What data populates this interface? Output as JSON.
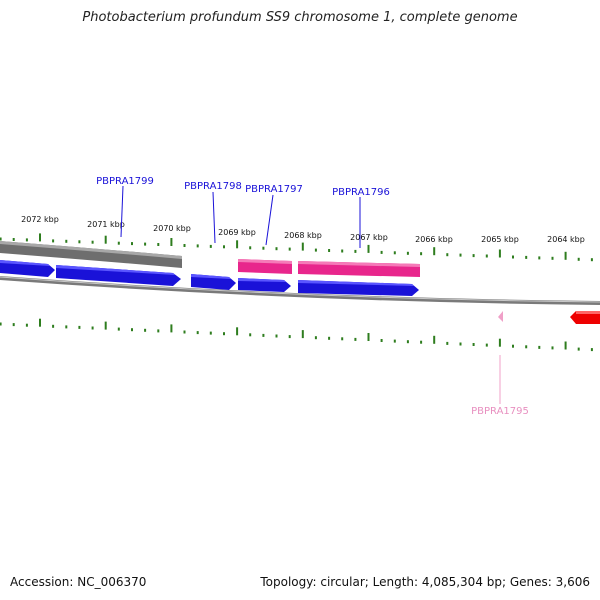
{
  "title": "Photobacterium profundum SS9 chromosome 1, complete genome",
  "footer": {
    "accession": "Accession: NC_006370",
    "summary": "Topology: circular; Length: 4,085,304 bp; Genes: 3,606"
  },
  "colors": {
    "blue_cds": "#1a12d8",
    "pink_cds": "#e8268c",
    "red_cds": "#ee0000",
    "light_pink": "#f0a0c8",
    "gray_feature": "#707070",
    "tick": "#2e7d1e",
    "backbone": "#808080",
    "label_blue": "#1a12d8",
    "label_pink": "#e890c0"
  },
  "kbp_ticks": [
    "2072 kbp",
    "2071 kbp",
    "2070 kbp",
    "2069 kbp",
    "2068 kbp",
    "2067 kbp",
    "2066 kbp",
    "2065 kbp",
    "2064 kbp"
  ],
  "gene_labels": [
    {
      "name": "PBPRA1799",
      "color": "label_blue"
    },
    {
      "name": "PBPRA1798",
      "color": "label_blue"
    },
    {
      "name": "PBPRA1797",
      "color": "label_blue"
    },
    {
      "name": "PBPRA1796",
      "color": "label_blue"
    },
    {
      "name": "PBPRA1795",
      "color": "label_pink"
    }
  ]
}
